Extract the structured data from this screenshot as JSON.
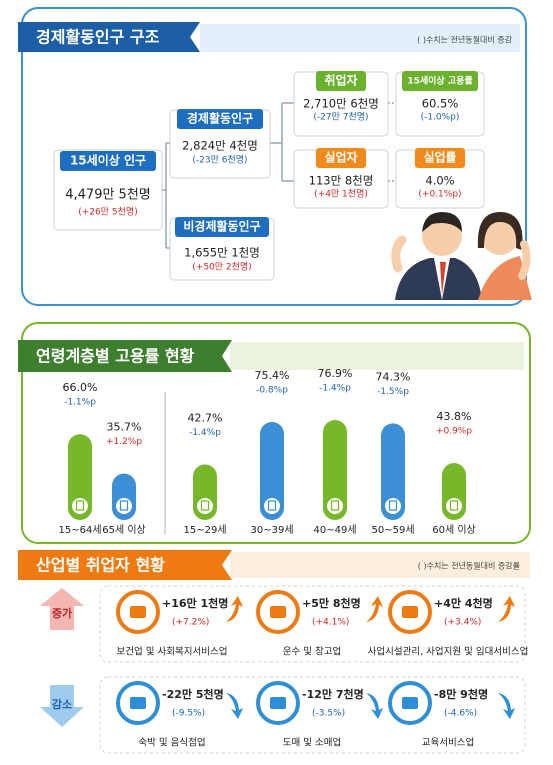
{
  "structure": {
    "title": "경제활동인구 구조",
    "note": "( )수치는 전년동월대비 증감",
    "nodes": [
      {
        "label": "15세이상 인구",
        "value": "4,479만 5천명",
        "change": "(+26만 5천명)"
      },
      {
        "label": "경제활동인구",
        "value": "2,824만 4천명",
        "change": "(-23만 6천명)"
      },
      {
        "label": "비경제활동인구",
        "value": "1,655만 1천명",
        "change": "(+50만 2천명)"
      },
      {
        "label": "취업자",
        "value": "2,710만 6천명",
        "change": "(-27만 7천명)"
      },
      {
        "label": "15세이상 고용률",
        "value": "60.5%",
        "change": "(-1.0%p)"
      },
      {
        "label": "실업자",
        "value": "113만 8천명",
        "change": "(+4만 1천명)"
      },
      {
        "label": "실업률",
        "value": "4.0%",
        "change": "(+0.1%p)"
      }
    ]
  },
  "age_chart": {
    "type": "bar",
    "title": "연령계층별 고용률 현황",
    "categories": [
      "15~64세",
      "65세 이상",
      "15~29세",
      "30~39세",
      "40~49세",
      "50~59세",
      "60세 이상"
    ],
    "values": [
      66.0,
      35.7,
      42.7,
      75.4,
      76.9,
      74.3,
      43.8
    ],
    "value_labels": [
      "66.0%",
      "35.7%",
      "42.7%",
      "75.4%",
      "76.9%",
      "74.3%",
      "43.8%"
    ],
    "changes": [
      "-1.1%p",
      "+1.2%p",
      "-1.4%p",
      "-0.8%p",
      "-1.4%p",
      "-1.5%p",
      "+0.9%p"
    ],
    "colors": [
      "#76b82a",
      "#3a8fd6",
      "#76b82a",
      "#3a8fd6",
      "#76b82a",
      "#3a8fd6",
      "#76b82a"
    ]
  },
  "industry": {
    "title": "산업별 취업자 현황",
    "note": "( )수치는 전년동월대비 증감률",
    "groups": [
      {
        "label": "증가",
        "items": [
          {
            "value": "+16만 1천명",
            "change": "(+7.2%)",
            "name": "보건업 및 사회복지서비스업"
          },
          {
            "value": "+5만 8천명",
            "change": "(+4.1%)",
            "name": "운수 및 창고업"
          },
          {
            "value": "+4만 4천명",
            "change": "(+3.4%)",
            "name": "사업시설관리, 사업지원 및 임대서비스업"
          }
        ]
      },
      {
        "label": "감소",
        "items": [
          {
            "value": "-22만 5천명",
            "change": "(-9.5%)",
            "name": "숙박 및 음식점업"
          },
          {
            "value": "-12만 7천명",
            "change": "(-3.5%)",
            "name": "도매 및 소매업"
          },
          {
            "value": "-8만 9천명",
            "change": "(-4.6%)",
            "name": "교육서비스업"
          }
        ]
      }
    ]
  }
}
